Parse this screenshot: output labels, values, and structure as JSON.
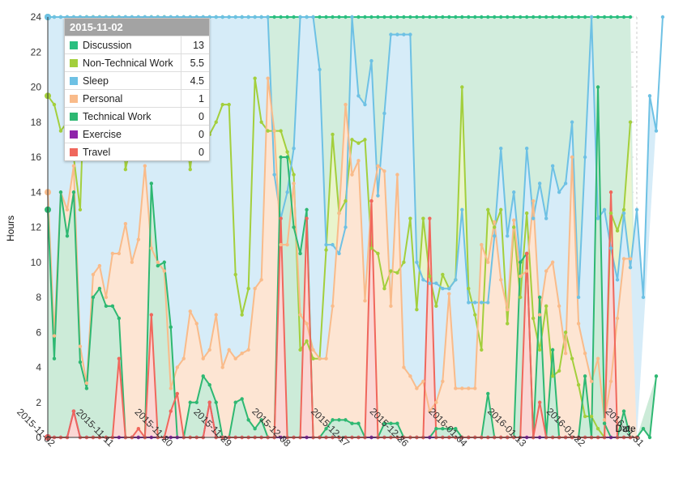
{
  "chart_data": {
    "type": "area",
    "ylabel": "Hours",
    "xlabel": "Date",
    "ylim": [
      0,
      24
    ],
    "yticks": [
      0,
      2,
      4,
      6,
      8,
      10,
      12,
      14,
      16,
      18,
      20,
      22,
      24
    ],
    "x_ticks": [
      "2015-11-02",
      "2015-11-11",
      "2015-11-20",
      "2015-11-29",
      "2015-12-08",
      "2015-12-17",
      "2015-12-26",
      "2016-01-04",
      "2016-01-13",
      "2016-01-22",
      "2016-01-31"
    ],
    "grid": true,
    "x_start": "2015-11-02",
    "x_end": "2016-01-31",
    "series": [
      {
        "name": "Travel",
        "color": "#f0675c",
        "fill": "#fbd7d4",
        "values": [
          0,
          0,
          0,
          0,
          1.5,
          0,
          0,
          0,
          0,
          0,
          0,
          4.5,
          0,
          0,
          0.5,
          0,
          7,
          0,
          0,
          1.5,
          2.5,
          0,
          0,
          0,
          0,
          2,
          0,
          0,
          0,
          0,
          0,
          0,
          0,
          0,
          0,
          0,
          12.5,
          0,
          0,
          0,
          12.5,
          0,
          0,
          0,
          0,
          0,
          0,
          0,
          0,
          0,
          13.5,
          0,
          0,
          0,
          0,
          0,
          0,
          0,
          0,
          12.5,
          0,
          0,
          0,
          0,
          0,
          0,
          0,
          0,
          0,
          0,
          0,
          0,
          0,
          0,
          10.5,
          0,
          2,
          0,
          0,
          0,
          0,
          0,
          0,
          0,
          0,
          0,
          0,
          14,
          0,
          0,
          0,
          0
        ]
      },
      {
        "name": "Exercise",
        "color": "#8e24aa",
        "fill": "#e9c2f0",
        "values": [
          0,
          0,
          0,
          0,
          1.5,
          0,
          0,
          0,
          0,
          0,
          0,
          0,
          0,
          0,
          0,
          0,
          0,
          0,
          0,
          0,
          0,
          0,
          0,
          0,
          0,
          2,
          0,
          0,
          0,
          0,
          0,
          0,
          0,
          0,
          0,
          0,
          0,
          0,
          0,
          0,
          0,
          0,
          0,
          0,
          0,
          0,
          0,
          0,
          0,
          0,
          0,
          0,
          0,
          0,
          0,
          0,
          0,
          0,
          0,
          0,
          0,
          0,
          0,
          0,
          0,
          0,
          0,
          0,
          0,
          0,
          0,
          0,
          0,
          0,
          0,
          0,
          0,
          0,
          0,
          0,
          0,
          0,
          0,
          0,
          0,
          0,
          0,
          0,
          0,
          0,
          0
        ]
      },
      {
        "name": "Technical Work",
        "color": "#2eb872",
        "fill": "#ccebd8",
        "values": [
          13,
          4.5,
          14,
          11.5,
          14,
          4.3,
          2.8,
          8,
          8.5,
          7.5,
          7.5,
          6.8,
          0,
          0,
          0,
          0,
          14.5,
          9.8,
          10,
          6.3,
          0,
          0,
          2,
          2,
          3.5,
          3,
          2,
          0,
          0,
          2,
          2.2,
          1,
          0.5,
          1,
          0,
          0,
          16,
          16,
          12,
          10.5,
          13,
          0,
          0,
          0.5,
          1,
          1,
          1,
          0.8,
          0.8,
          0,
          0,
          0,
          0.8,
          0.8,
          0.8,
          0,
          0,
          0,
          0,
          0,
          0.5,
          0.5,
          0.5,
          0.5,
          0,
          0,
          0,
          0,
          2.5,
          0,
          0,
          0,
          0,
          10,
          10.5,
          0,
          8,
          0,
          5,
          0,
          0,
          0,
          0,
          3.5,
          0,
          20,
          0.8,
          0,
          0,
          1.5,
          0,
          0,
          0.5,
          0,
          3.5
        ]
      },
      {
        "name": "Personal",
        "color": "#f9bb8a",
        "fill": "#fde5d3",
        "values": [
          14,
          5.8,
          14,
          13,
          15.5,
          5.2,
          3.1,
          9.3,
          9.8,
          8,
          10.5,
          10.5,
          12.2,
          10,
          11.3,
          15.5,
          10.8,
          10,
          9.5,
          2.8,
          4,
          4.5,
          7.2,
          6.5,
          4.5,
          5,
          7,
          4,
          5,
          4.5,
          4.8,
          5,
          8.5,
          9,
          20.5,
          17.5,
          11,
          11,
          14.5,
          7,
          6.5,
          5,
          4.5,
          4.5,
          7.5,
          12.8,
          19,
          15,
          15.8,
          7.8,
          13.5,
          15.5,
          15.2,
          7.5,
          15,
          4,
          3.5,
          2.8,
          3.2,
          1.5,
          2,
          3.2,
          8.2,
          2.8,
          2.8,
          2.8,
          2.8,
          11,
          10,
          12.3,
          9,
          7.3,
          12.4,
          9.2,
          9.5,
          13.5,
          7,
          9.5,
          10,
          7.5,
          4.8,
          16,
          6.5,
          4.8,
          3.2,
          4.5,
          1,
          3.2,
          6.8,
          10.2,
          10.2
        ]
      },
      {
        "name": "Sleep",
        "color": "#6ec1e4",
        "fill": "#d6ecf8",
        "values": [
          24,
          24,
          24,
          24,
          24,
          24,
          24,
          24,
          24,
          24,
          24,
          24,
          24,
          24,
          24,
          24,
          24,
          24,
          24,
          24,
          24,
          24,
          24,
          24,
          24,
          24,
          24,
          24,
          24,
          24,
          24,
          24,
          24,
          24,
          24,
          15,
          12.5,
          14,
          16.5,
          24,
          24,
          24,
          21,
          11,
          11,
          10.5,
          12,
          24,
          19.5,
          19,
          21.5,
          13.8,
          18.5,
          23,
          23,
          23,
          23,
          10,
          9,
          8.8,
          8.8,
          8.5,
          8.5,
          9,
          13,
          7.7,
          7.7,
          7.7,
          7.7,
          11.5,
          16.5,
          11.5,
          14,
          10,
          16.5,
          12.5,
          14.5,
          12.5,
          15.5,
          14,
          14.5,
          18,
          8,
          16,
          24,
          12.5,
          13,
          10.8,
          9,
          12.8,
          9.7,
          13,
          8,
          19.5,
          17.5,
          24
        ]
      },
      {
        "name": "Non-Technical Work",
        "color": "#a3cf3c",
        "fill": "#e9f4cc",
        "values": [
          19.5,
          19,
          17.5,
          18,
          16,
          13,
          24,
          24,
          24,
          24,
          24,
          24,
          15.3,
          17,
          17.5,
          18,
          24,
          24,
          24,
          17.5,
          18,
          18.5,
          15.3,
          18.5,
          19,
          17.3,
          18,
          19,
          19,
          9.3,
          7,
          8.5,
          20.5,
          18,
          17.5,
          17.5,
          17.5,
          16.3,
          15,
          5,
          5.5,
          4.5,
          4.5,
          10.7,
          17.3,
          12.8,
          13.5,
          17,
          16.8,
          17,
          10.8,
          10.5,
          8.5,
          9.5,
          9.4,
          10,
          12.5,
          7.3,
          12.5,
          9.2,
          7.5,
          9.3,
          8.5,
          9,
          20,
          8.5,
          7,
          5,
          13,
          12,
          13,
          6.5,
          12,
          8,
          12.8,
          6.8,
          5,
          7.5,
          3.5,
          3.8,
          6,
          4.5,
          3,
          1.2,
          1.2,
          0.5,
          0,
          12.8,
          11.8,
          13,
          18
        ]
      },
      {
        "name": "Discussion",
        "color": "#2bbf80",
        "fill": "#d2eddd",
        "values": [
          24,
          24,
          24,
          24,
          24,
          24,
          24,
          24,
          24,
          24,
          24,
          24,
          24,
          24,
          24,
          24,
          24,
          24,
          24,
          24,
          24,
          24,
          24,
          24,
          24,
          24,
          24,
          24,
          24,
          24,
          24,
          24,
          24,
          24,
          24,
          24,
          24,
          24,
          24,
          24,
          24,
          24,
          24,
          24,
          24,
          24,
          24,
          24,
          24,
          24,
          24,
          24,
          24,
          24,
          24,
          24,
          24,
          24,
          24,
          24,
          24,
          24,
          24,
          24,
          24,
          24,
          24,
          24,
          24,
          24,
          24,
          24,
          24,
          24,
          24,
          24,
          24,
          24,
          24,
          24,
          24,
          24,
          24,
          24,
          24,
          24,
          24,
          24,
          24,
          24,
          24
        ]
      }
    ]
  },
  "tooltip": {
    "date": "2015-11-02",
    "rows": [
      {
        "label": "Discussion",
        "value": "13",
        "color": "#2bbf80"
      },
      {
        "label": "Non-Technical Work",
        "value": "5.5",
        "color": "#a3cf3c"
      },
      {
        "label": "Sleep",
        "value": "4.5",
        "color": "#6ec1e4"
      },
      {
        "label": "Personal",
        "value": "1",
        "color": "#f9bb8a"
      },
      {
        "label": "Technical Work",
        "value": "0",
        "color": "#2eb872"
      },
      {
        "label": "Exercise",
        "value": "0",
        "color": "#8e24aa"
      },
      {
        "label": "Travel",
        "value": "0",
        "color": "#f0675c"
      }
    ]
  }
}
